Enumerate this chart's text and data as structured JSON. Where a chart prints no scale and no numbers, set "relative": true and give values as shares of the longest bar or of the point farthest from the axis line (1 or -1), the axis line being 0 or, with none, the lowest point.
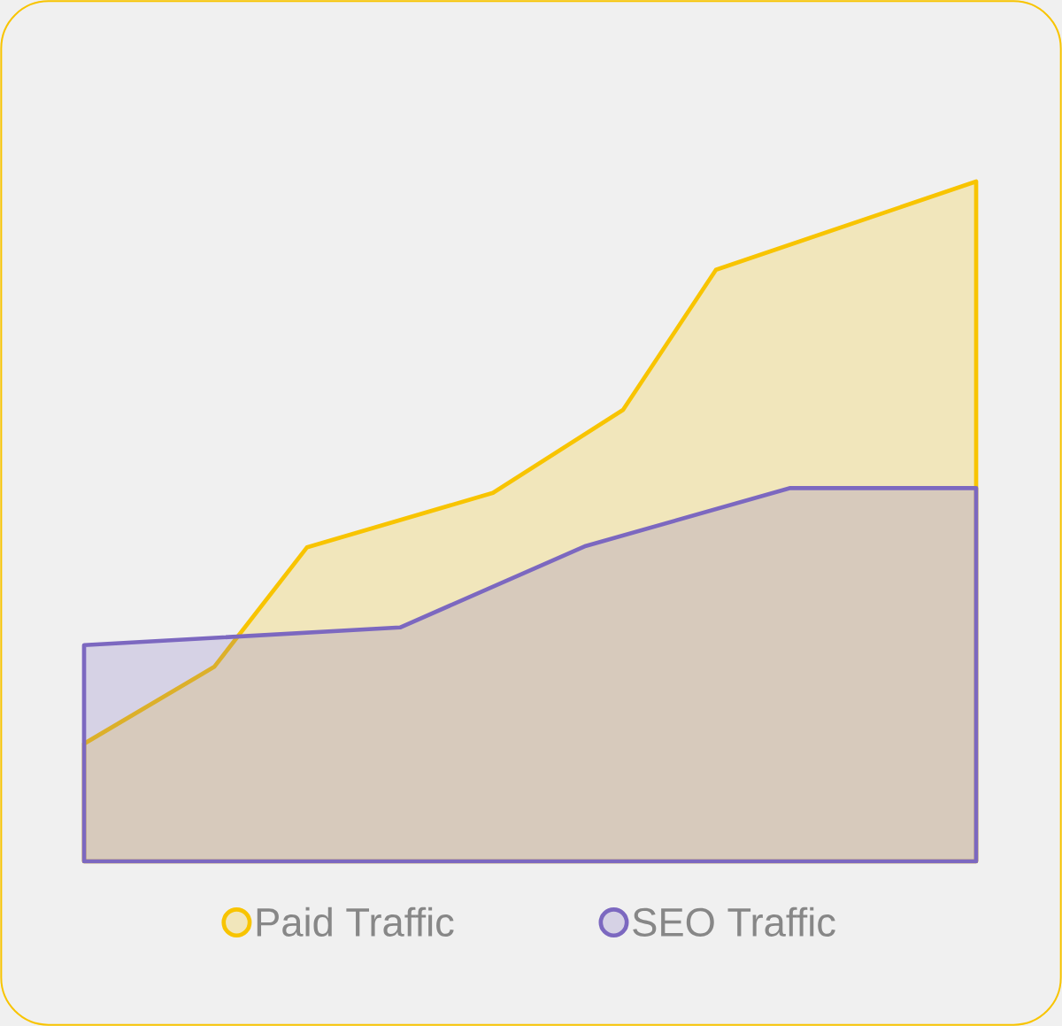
{
  "chart_data": {
    "type": "area",
    "relative": true,
    "legend": "bottom",
    "categories": [
      null,
      null,
      null,
      null,
      null,
      null,
      null,
      null,
      null,
      null,
      null,
      null,
      null,
      null,
      null,
      null,
      null,
      null,
      null,
      null,
      null,
      null,
      null,
      null,
      null,
      null,
      null,
      null,
      null,
      null,
      null,
      null,
      null,
      null,
      null,
      null,
      null,
      null,
      null,
      null,
      null,
      null,
      null,
      null,
      null,
      null,
      null,
      null,
      null
    ],
    "series": [
      {
        "name": "Paid Traffic",
        "color": "#f8c400",
        "values": [
          0.173,
          null,
          null,
          null,
          null,
          null,
          null,
          0.286,
          null,
          null,
          null,
          null,
          0.462,
          null,
          null,
          null,
          null,
          null,
          null,
          null,
          null,
          null,
          0.542,
          null,
          null,
          null,
          null,
          null,
          null,
          0.664,
          null,
          null,
          null,
          null,
          0.87,
          null,
          null,
          null,
          null,
          null,
          null,
          null,
          null,
          null,
          null,
          null,
          null,
          null,
          1.0
        ]
      },
      {
        "name": "SEO Traffic",
        "color": "#7c68c0",
        "values": [
          0.318,
          null,
          null,
          null,
          null,
          null,
          null,
          null,
          null,
          null,
          null,
          null,
          null,
          null,
          null,
          null,
          null,
          0.344,
          null,
          null,
          null,
          null,
          null,
          null,
          null,
          null,
          null,
          0.464,
          null,
          null,
          null,
          null,
          null,
          null,
          null,
          null,
          null,
          null,
          0.549,
          null,
          null,
          null,
          null,
          null,
          null,
          null,
          null,
          null,
          0.549
        ]
      }
    ]
  }
}
